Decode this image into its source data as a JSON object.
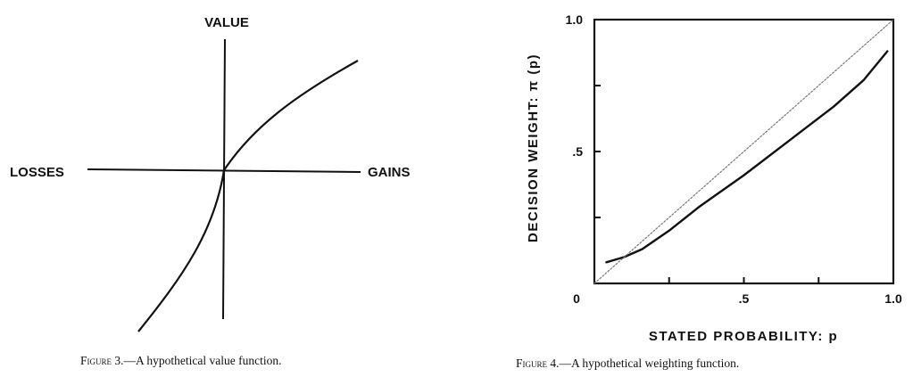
{
  "figures": [
    {
      "id": "figure-3",
      "labels": {
        "value": "VALUE",
        "losses": "LOSSES",
        "gains": "GAINS"
      },
      "caption": {
        "label": "Figure 3.",
        "text": "—A hypothetical value function."
      }
    },
    {
      "id": "figure-4",
      "caption": {
        "label": "Figure 4.",
        "text": "—A hypothetical weighting function."
      }
    }
  ],
  "chart_data": {
    "type": "line",
    "xlabel": "STATED PROBABILITY: p",
    "ylabel": "DECISION WEIGHT: π (p)",
    "xlim": [
      0,
      1
    ],
    "ylim": [
      0,
      1
    ],
    "x_tick_labels": [
      "0",
      ".5",
      "1.0"
    ],
    "y_tick_labels": [
      "1.0",
      ".5"
    ],
    "x_tick_values": [
      0,
      0.25,
      0.5,
      0.75,
      1
    ],
    "y_tick_values": [
      0.25,
      0.5,
      0.75
    ],
    "series": [
      {
        "style": "solid",
        "x": [
          0.04,
          0.1,
          0.16,
          0.25,
          0.35,
          0.5,
          0.65,
          0.8,
          0.9,
          0.98
        ],
        "y": [
          0.08,
          0.1,
          0.13,
          0.2,
          0.29,
          0.41,
          0.54,
          0.67,
          0.77,
          0.88
        ]
      },
      {
        "style": "dotted",
        "x": [
          0,
          1
        ],
        "y": [
          0,
          1
        ]
      }
    ]
  }
}
